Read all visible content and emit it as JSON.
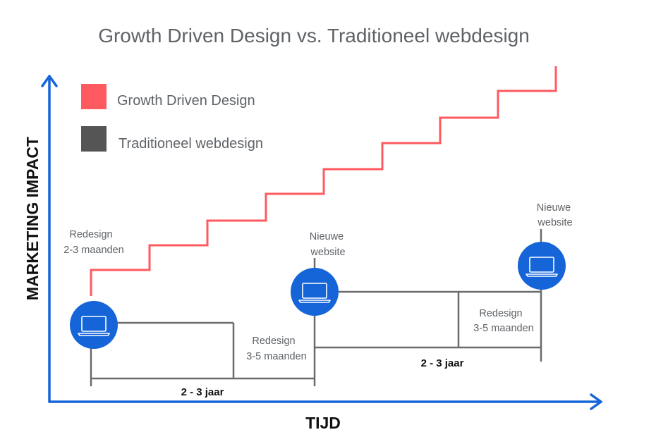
{
  "title": "Growth Driven Design vs. Traditioneel webdesign",
  "axes": {
    "y_label": "MARKETING IMPACT",
    "x_label": "TIJD"
  },
  "legend": [
    {
      "label": "Growth Driven Design",
      "color": "#ff5a5f"
    },
    {
      "label": "Traditioneel webdesign",
      "color": "#555555"
    }
  ],
  "annotations": {
    "gdd_redesign": [
      "Redesign",
      "2-3 maanden"
    ],
    "new_site_1": [
      "Nieuwe",
      "website"
    ],
    "new_site_2": [
      "Nieuwe",
      "website"
    ],
    "redesign_1": [
      "Redesign",
      "3-5 maanden"
    ],
    "redesign_2": [
      "Redesign",
      "3-5 maanden"
    ],
    "span_1": "2 - 3 jaar",
    "span_2": "2 - 3 jaar"
  },
  "colors": {
    "axis": "#1565d8",
    "gdd": "#ff5a5f",
    "traditional": "#555555",
    "laptop_circle": "#1565d8"
  },
  "icons": [
    "laptop-icon",
    "laptop-icon",
    "laptop-icon"
  ]
}
